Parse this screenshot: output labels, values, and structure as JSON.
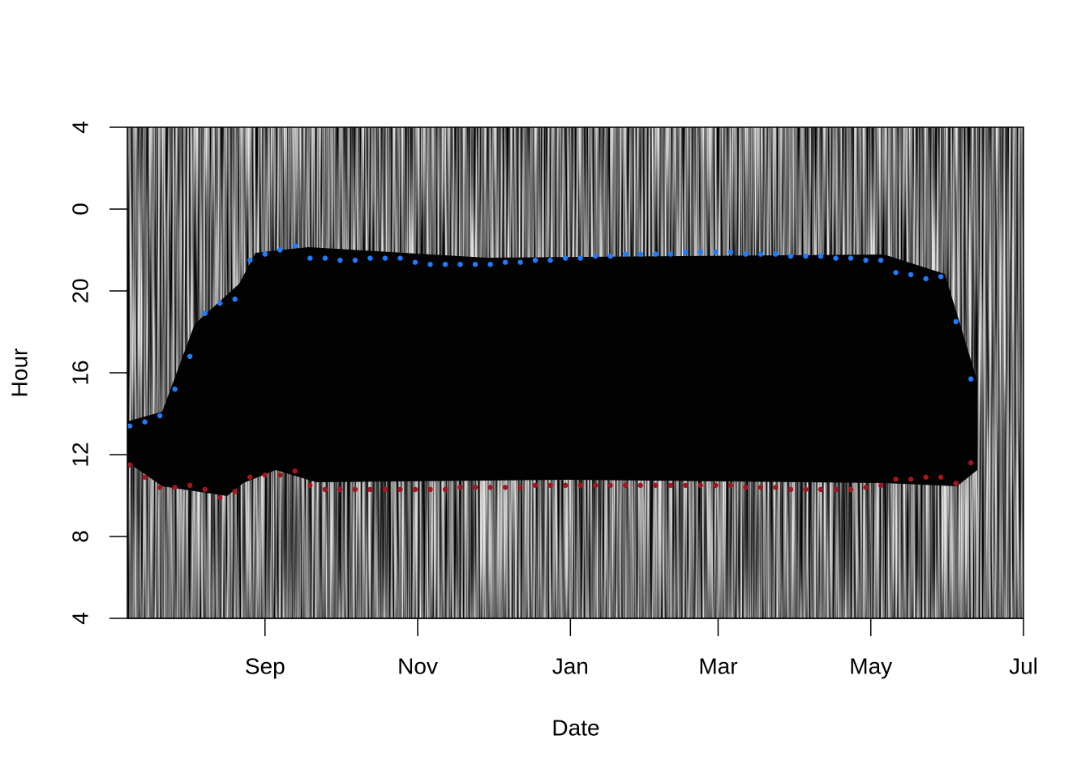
{
  "chart_data": {
    "type": "scatter",
    "x_label": "Date",
    "y_label": "Hour",
    "xlim": [
      -55,
      303
    ],
    "xticks": [
      {
        "value": 0,
        "label": "Sep"
      },
      {
        "value": 61,
        "label": "Nov"
      },
      {
        "value": 122,
        "label": "Jan"
      },
      {
        "value": 181,
        "label": "Mar"
      },
      {
        "value": 242,
        "label": "May"
      },
      {
        "value": 303,
        "label": "Jul"
      }
    ],
    "ylim": [
      4,
      28
    ],
    "yticks": [
      {
        "value": 28,
        "label": "4"
      },
      {
        "value": 24,
        "label": "0"
      },
      20,
      16,
      12,
      8,
      4
    ],
    "grid": false,
    "x": [
      -54,
      -48,
      -42,
      -36,
      -30,
      -24,
      -18,
      -12,
      -6,
      0,
      6,
      12,
      18,
      24,
      30,
      36,
      42,
      48,
      54,
      60,
      66,
      72,
      78,
      84,
      90,
      96,
      102,
      108,
      114,
      120,
      126,
      132,
      138,
      144,
      150,
      156,
      162,
      168,
      174,
      180,
      186,
      192,
      198,
      204,
      210,
      216,
      222,
      228,
      234,
      240,
      246,
      252,
      258,
      264,
      270,
      276,
      282
    ],
    "series": [
      {
        "color": "#1f7bff",
        "values": [
          13.4,
          13.6,
          13.9,
          15.2,
          16.8,
          18.9,
          19.4,
          19.6,
          21.5,
          21.8,
          22.0,
          22.2,
          21.6,
          21.6,
          21.5,
          21.5,
          21.6,
          21.6,
          21.6,
          21.4,
          21.3,
          21.3,
          21.3,
          21.3,
          21.3,
          21.4,
          21.4,
          21.5,
          21.5,
          21.6,
          21.6,
          21.7,
          21.7,
          21.8,
          21.8,
          21.8,
          21.8,
          21.9,
          21.9,
          21.9,
          21.9,
          21.8,
          21.8,
          21.8,
          21.7,
          21.7,
          21.7,
          21.6,
          21.6,
          21.5,
          21.5,
          20.9,
          20.8,
          20.6,
          20.7,
          18.5,
          15.7
        ]
      },
      {
        "color": "#a8141e",
        "values": [
          11.5,
          10.9,
          10.4,
          10.4,
          10.5,
          10.3,
          9.9,
          10.2,
          10.9,
          11.0,
          11.0,
          11.2,
          10.5,
          10.3,
          10.3,
          10.3,
          10.3,
          10.3,
          10.3,
          10.3,
          10.3,
          10.3,
          10.4,
          10.4,
          10.4,
          10.4,
          10.4,
          10.5,
          10.5,
          10.5,
          10.5,
          10.5,
          10.5,
          10.5,
          10.5,
          10.5,
          10.5,
          10.5,
          10.5,
          10.5,
          10.5,
          10.4,
          10.4,
          10.4,
          10.3,
          10.3,
          10.3,
          10.3,
          10.3,
          10.4,
          10.5,
          10.8,
          10.8,
          10.9,
          10.9,
          10.6,
          11.6
        ]
      }
    ]
  }
}
